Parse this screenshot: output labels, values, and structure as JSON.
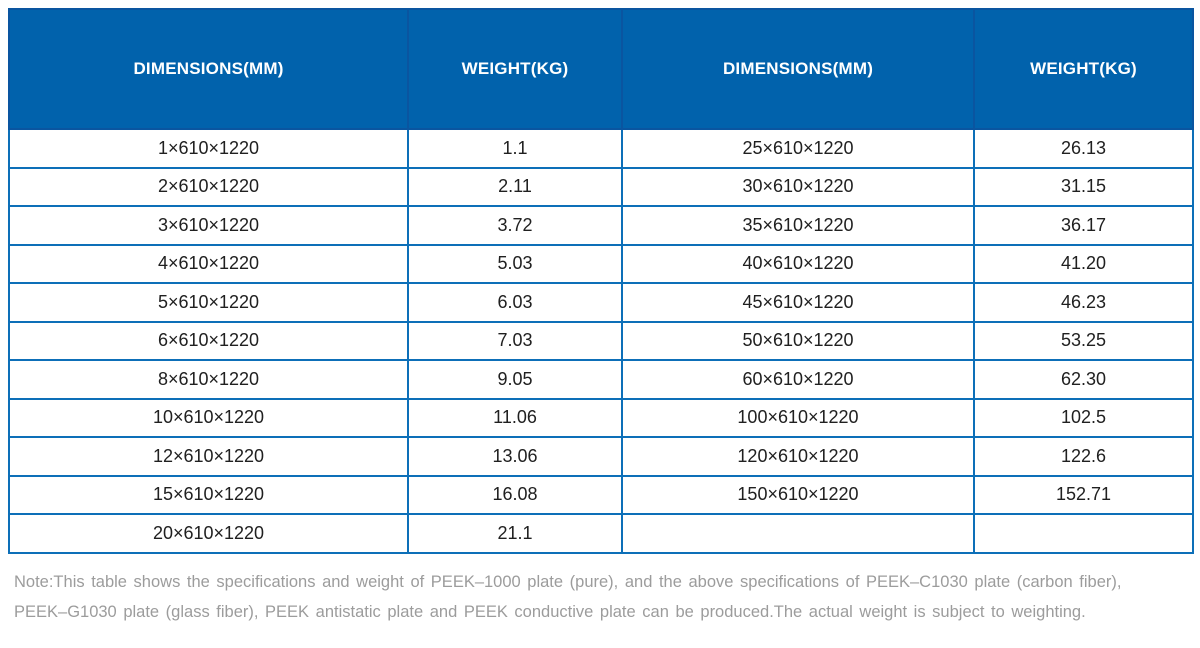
{
  "table": {
    "headers": [
      "DIMENSIONS(MM)",
      "WEIGHT(KG)",
      "DIMENSIONS(MM)",
      "WEIGHT(KG)"
    ],
    "rows": [
      [
        "1×610×1220",
        "1.1",
        "25×610×1220",
        "26.13"
      ],
      [
        "2×610×1220",
        "2.11",
        "30×610×1220",
        "31.15"
      ],
      [
        "3×610×1220",
        "3.72",
        "35×610×1220",
        "36.17"
      ],
      [
        "4×610×1220",
        "5.03",
        "40×610×1220",
        "41.20"
      ],
      [
        "5×610×1220",
        "6.03",
        "45×610×1220",
        "46.23"
      ],
      [
        "6×610×1220",
        "7.03",
        "50×610×1220",
        "53.25"
      ],
      [
        "8×610×1220",
        "9.05",
        "60×610×1220",
        "62.30"
      ],
      [
        "10×610×1220",
        "11.06",
        "100×610×1220",
        "102.5"
      ],
      [
        "12×610×1220",
        "13.06",
        "120×610×1220",
        "122.6"
      ],
      [
        "15×610×1220",
        "16.08",
        "150×610×1220",
        "152.71"
      ],
      [
        "20×610×1220",
        "21.1",
        "",
        ""
      ]
    ]
  },
  "note": {
    "lines": [
      "Note:This table shows the specifications and weight of PEEK–1000 plate (pure), and the above specifications of PEEK–C1030 plate (carbon fiber),",
      "PEEK–G1030 plate (glass fiber), PEEK antistatic plate and PEEK conductive plate can be produced.The actual weight is subject to weighting."
    ]
  },
  "colors": {
    "header_background": "#0162ac",
    "header_divider": "#0a55a0",
    "grid_line": "#0d6fb8",
    "cell_text": "#202020",
    "note_text": "#9c9c9c"
  }
}
